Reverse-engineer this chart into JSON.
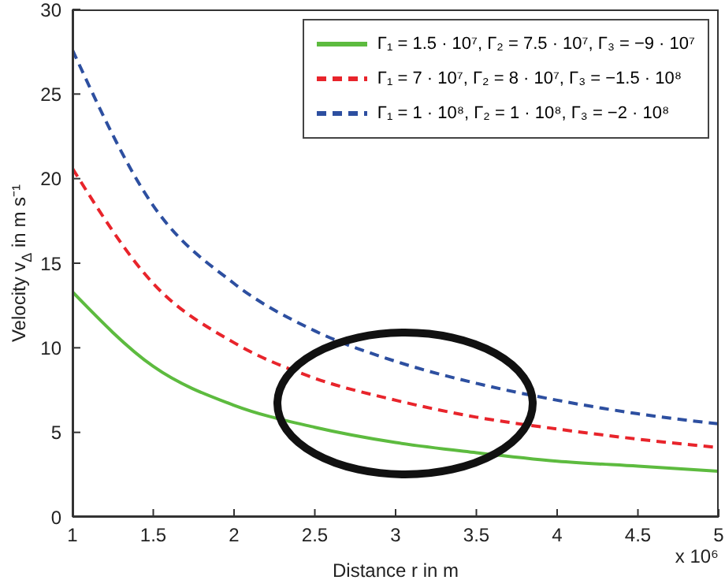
{
  "chart_data": {
    "type": "line",
    "xlabel": "Distance r in m",
    "ylabel": "Velocity v$_{Δ}$ in m s⁻¹",
    "annotations": [
      "x 10⁶"
    ],
    "x": [
      1,
      1.5,
      2,
      2.5,
      3,
      3.5,
      4,
      4.5,
      5
    ],
    "series": [
      {
        "name": "Γ₁ = 1.5 · 10⁷, Γ₂ = 7.5 · 10⁷, Γ₃ = −9 · 10⁷",
        "color": "#5dbb3f",
        "line_style": "solid",
        "values": [
          13.3,
          8.9,
          6.6,
          5.3,
          4.4,
          3.8,
          3.3,
          3.0,
          2.7
        ]
      },
      {
        "name": "Γ₁ = 7 · 10⁷, Γ₂ = 8 · 10⁷, Γ₃ = −1.5 · 10⁸",
        "color": "#e8242b",
        "line_style": "dashed",
        "values": [
          20.6,
          13.8,
          10.3,
          8.2,
          6.9,
          5.9,
          5.2,
          4.6,
          4.1
        ]
      },
      {
        "name": "Γ₁ = 1 · 10⁸, Γ₂ = 1 · 10⁸, Γ₃ = −2 · 10⁸",
        "color": "#2d4fa0",
        "line_style": "dashed",
        "values": [
          27.6,
          18.4,
          13.8,
          11.0,
          9.2,
          7.9,
          6.9,
          6.1,
          5.5
        ]
      }
    ],
    "xlim": [
      1,
      5
    ],
    "xticks": [
      1,
      1.5,
      2,
      2.5,
      3,
      3.5,
      4,
      4.5,
      5
    ],
    "ylim": [
      0,
      30
    ],
    "yticks": [
      0,
      5,
      10,
      15,
      20,
      25,
      30
    ],
    "grid": false,
    "legend": "top right",
    "marker": "none"
  }
}
